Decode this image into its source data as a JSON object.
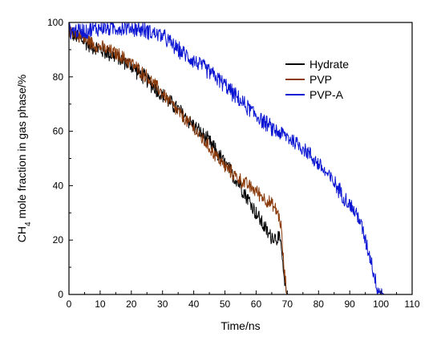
{
  "chart_data": {
    "type": "line",
    "title": "",
    "xlabel": "Time/ns",
    "ylabel": {
      "prefix": "CH",
      "subscript": "4",
      "suffix": " mole fraction in gas phase/%"
    },
    "xlim": [
      0,
      110
    ],
    "ylim": [
      0,
      100
    ],
    "xticks": [
      0,
      10,
      20,
      30,
      40,
      50,
      60,
      70,
      80,
      90,
      100,
      110
    ],
    "yticks": [
      0,
      20,
      40,
      60,
      80,
      100
    ],
    "grid": false,
    "legend_position": "top-right",
    "series": [
      {
        "name": "Hydrate",
        "color": "#000000",
        "noise": 3.5,
        "x": [
          0,
          2,
          5,
          8,
          12,
          16,
          20,
          25,
          30,
          35,
          40,
          45,
          50,
          55,
          60,
          64,
          66,
          67,
          68,
          69,
          70,
          75,
          80,
          90,
          100,
          102
        ],
        "y": [
          97,
          95,
          93,
          91,
          89,
          87,
          84,
          79,
          73,
          68,
          62,
          56,
          48,
          40,
          30,
          22,
          21,
          21,
          18,
          4,
          0,
          0,
          0,
          0,
          0,
          0
        ]
      },
      {
        "name": "PVP",
        "color": "#8b3a0a",
        "noise": 3.0,
        "x": [
          0,
          2,
          5,
          8,
          12,
          16,
          20,
          25,
          30,
          35,
          40,
          45,
          50,
          55,
          60,
          65,
          67,
          68,
          69,
          70,
          75,
          80,
          90,
          100,
          102
        ],
        "y": [
          97,
          96,
          94,
          92,
          90,
          88,
          85,
          80,
          74,
          67,
          61,
          54,
          47,
          42,
          38,
          33,
          30,
          25,
          8,
          0,
          0,
          0,
          0,
          0,
          0
        ]
      },
      {
        "name": "PVP-A",
        "color": "#0a14d2",
        "noise": 3.5,
        "x": [
          0,
          3,
          6,
          10,
          15,
          20,
          25,
          30,
          35,
          40,
          45,
          50,
          55,
          60,
          65,
          70,
          75,
          80,
          85,
          90,
          93,
          95,
          97,
          98,
          99,
          100,
          101,
          102
        ],
        "y": [
          97,
          97,
          97,
          98,
          98,
          98,
          97,
          95,
          90,
          86,
          82,
          77,
          71,
          66,
          61,
          58,
          54,
          48,
          41,
          33,
          28,
          20,
          12,
          6,
          2,
          1,
          0,
          0
        ]
      }
    ]
  }
}
